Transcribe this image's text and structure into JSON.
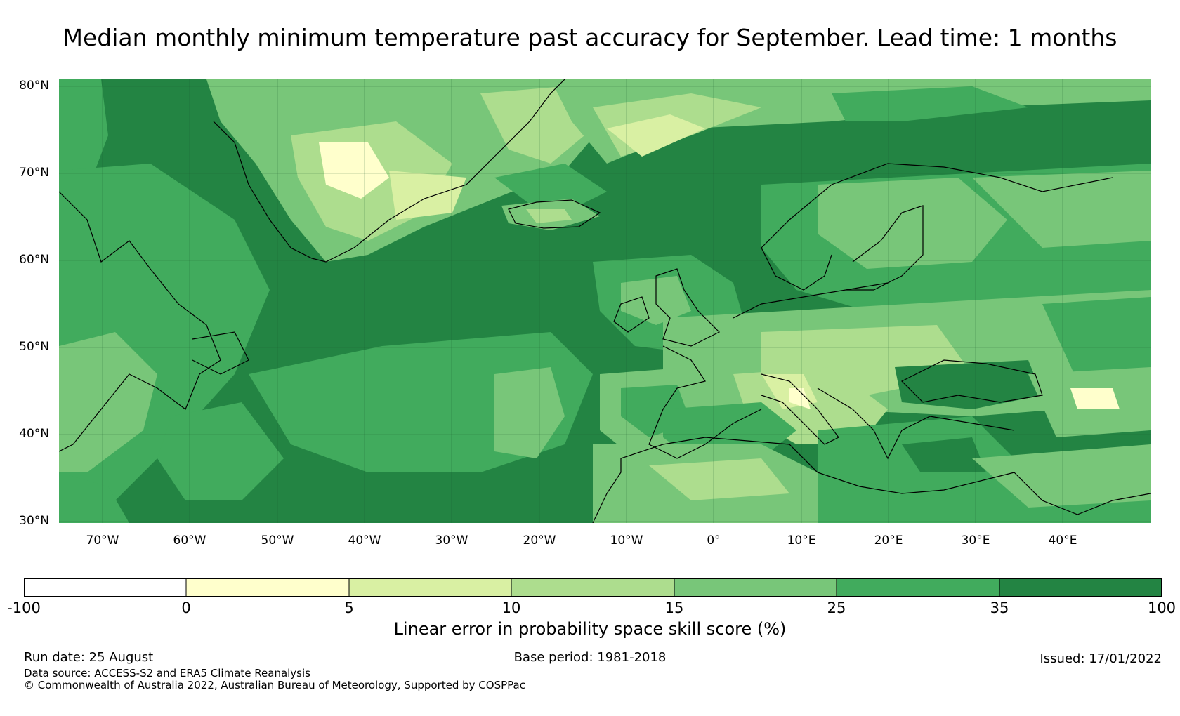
{
  "title": "Median monthly minimum temperature past accuracy for September. Lead time: 1 months",
  "map": {
    "lat_labels": [
      "80°N",
      "70°N",
      "60°N",
      "50°N",
      "40°N",
      "30°N"
    ],
    "lon_labels": [
      "70°W",
      "60°W",
      "50°W",
      "40°W",
      "30°W",
      "20°W",
      "10°W",
      "0°",
      "10°E",
      "20°E",
      "30°E",
      "40°E"
    ],
    "extent": {
      "lon_min": -75,
      "lon_max": 50,
      "lat_min": 30,
      "lat_max": 81
    }
  },
  "colorbar": {
    "label": "Linear error in probability space skill score (%)",
    "bounds": [
      "-100",
      "0",
      "5",
      "10",
      "15",
      "25",
      "35",
      "100"
    ],
    "colors": [
      "#ffffff",
      "#ffffcc",
      "#d9f0a3",
      "#addd8e",
      "#78c679",
      "#41ab5d",
      "#238443"
    ]
  },
  "footer": {
    "run_date": "Run date: 25 August",
    "base_period": "Base period: 1981-2018",
    "issued": "Issued: 17/01/2022",
    "data_source": "Data source: ACCESS-S2 and ERA5 Climate Reanalysis",
    "copyright": "© Commonwealth of Australia 2022, Australian Bureau of Meteorology, Supported by COSPPac"
  }
}
